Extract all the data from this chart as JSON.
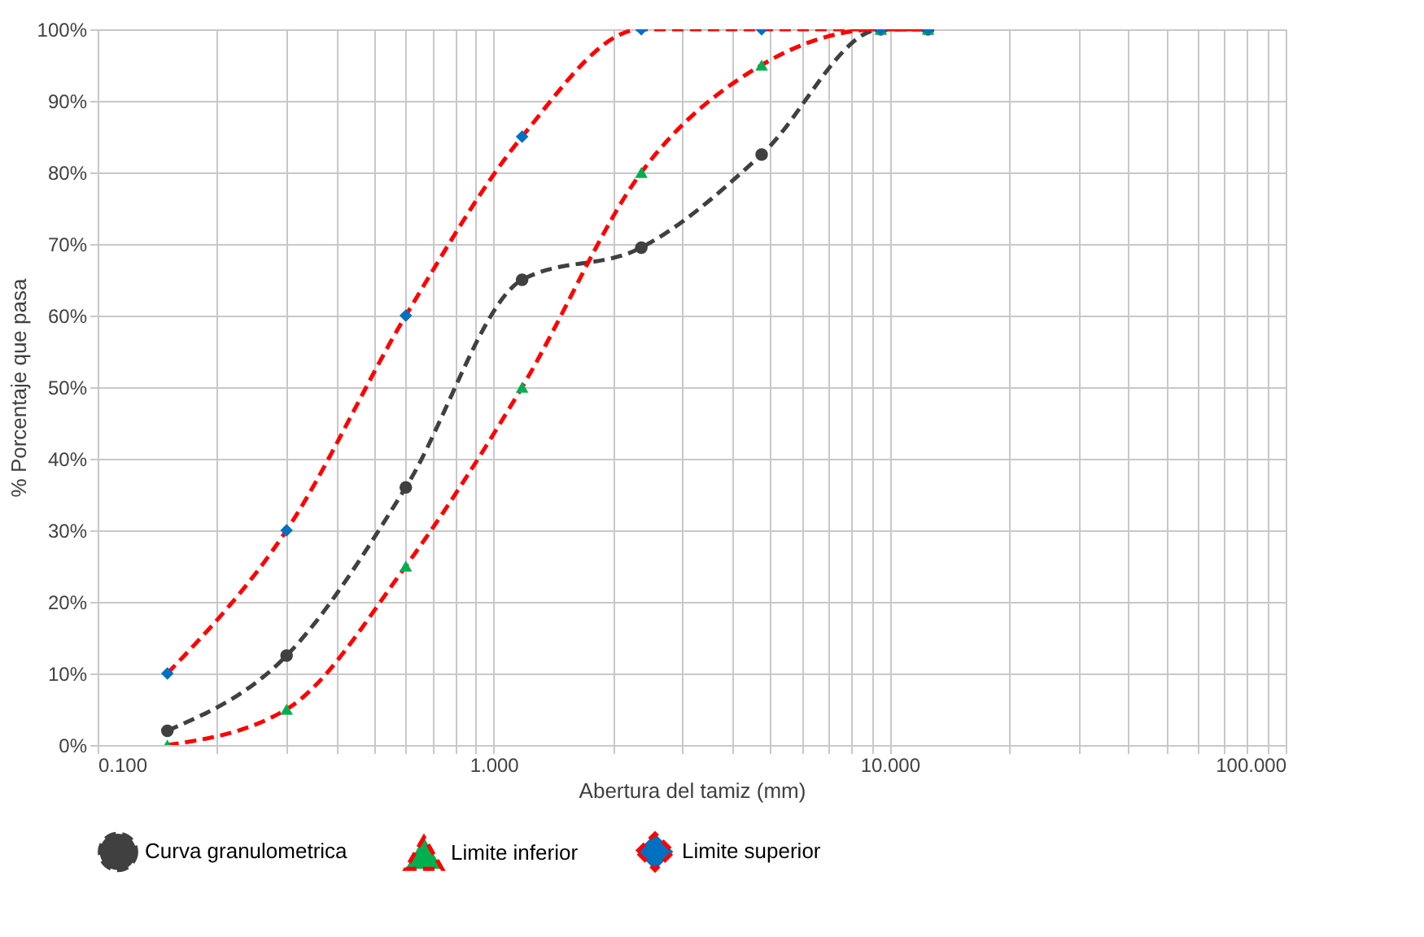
{
  "chart_data": {
    "type": "line",
    "xlabel": "Abertura del tamiz (mm)",
    "ylabel": "% Porcentaje que pasa",
    "log": "x",
    "grid": true,
    "legend": "bottom",
    "xlim": [
      0.1,
      100
    ],
    "ylim": [
      0,
      100
    ],
    "xticks": [
      {
        "value": 0.1,
        "label": "0.100"
      },
      {
        "value": 0.2,
        "label": null
      },
      {
        "value": 0.3,
        "label": null
      },
      {
        "value": 0.4,
        "label": null
      },
      {
        "value": 0.5,
        "label": null
      },
      {
        "value": 0.6,
        "label": null
      },
      {
        "value": 0.7,
        "label": null
      },
      {
        "value": 0.8,
        "label": null
      },
      {
        "value": 0.9,
        "label": null
      },
      {
        "value": 1,
        "label": "1.000"
      },
      {
        "value": 2,
        "label": null
      },
      {
        "value": 3,
        "label": null
      },
      {
        "value": 4,
        "label": null
      },
      {
        "value": 5,
        "label": null
      },
      {
        "value": 6,
        "label": null
      },
      {
        "value": 7,
        "label": null
      },
      {
        "value": 8,
        "label": null
      },
      {
        "value": 9,
        "label": null
      },
      {
        "value": 10,
        "label": "10.000"
      },
      {
        "value": 20,
        "label": null
      },
      {
        "value": 30,
        "label": null
      },
      {
        "value": 40,
        "label": null
      },
      {
        "value": 50,
        "label": null
      },
      {
        "value": 60,
        "label": null
      },
      {
        "value": 70,
        "label": null
      },
      {
        "value": 80,
        "label": null
      },
      {
        "value": 90,
        "label": null
      },
      {
        "value": 100,
        "label": "100.000"
      }
    ],
    "yticks": [
      {
        "value": 0,
        "label": "0%"
      },
      {
        "value": 10,
        "label": "10%"
      },
      {
        "value": 20,
        "label": "20%"
      },
      {
        "value": 30,
        "label": "30%"
      },
      {
        "value": 40,
        "label": "40%"
      },
      {
        "value": 50,
        "label": "50%"
      },
      {
        "value": 60,
        "label": "60%"
      },
      {
        "value": 70,
        "label": "70%"
      },
      {
        "value": 80,
        "label": "80%"
      },
      {
        "value": 90,
        "label": "90%"
      },
      {
        "value": 100,
        "label": "100%"
      }
    ],
    "x": [
      0.15,
      0.3,
      0.6,
      1.18,
      2.36,
      4.75,
      9.5,
      12.5
    ],
    "series": [
      {
        "name": "Curva granulometrica",
        "color": "#404040",
        "marker": "circle",
        "line_style": "dashed",
        "values": [
          2,
          12.5,
          36,
          65,
          69.5,
          82.5,
          100,
          100
        ]
      },
      {
        "name": "Limite inferior",
        "color": "#ff0000",
        "marker": "triangle",
        "line_style": "dashed",
        "values": [
          0,
          5,
          25,
          50,
          80,
          95,
          100,
          100
        ]
      },
      {
        "name": "Limite superior",
        "color": "#ff0000",
        "marker": "diamond",
        "line_style": "dashed",
        "values": [
          10,
          30,
          60,
          85,
          100,
          100,
          100,
          100
        ]
      }
    ]
  }
}
